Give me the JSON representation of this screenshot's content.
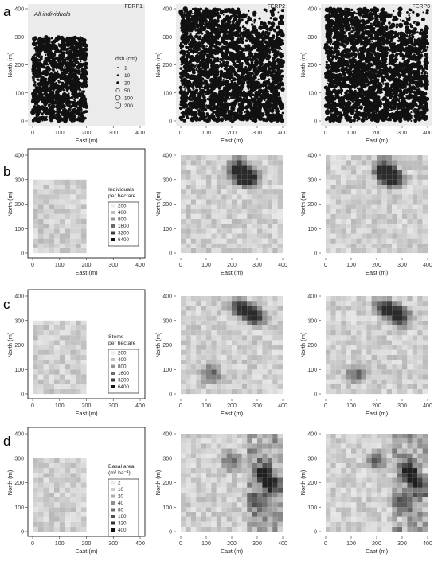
{
  "figure": {
    "row_labels": [
      "a",
      "b",
      "c",
      "d"
    ],
    "panel_titles": {
      "a1": "FERP1",
      "a2": "FERP2",
      "a3": "FERP3"
    },
    "in_panel_note": "All individuals"
  },
  "axes": {
    "xlabel": "East (m)",
    "ylabel": "North (m)",
    "ticks": [
      0,
      100,
      200,
      300,
      400
    ],
    "xlim": [
      0,
      400
    ],
    "ylim": [
      0,
      400
    ]
  },
  "chart_data": [
    {
      "type": "scatter",
      "row": "a",
      "panels": [
        "FERP1",
        "FERP2",
        "FERP3"
      ],
      "xlabel": "East (m)",
      "ylabel": "North (m)",
      "xlim": [
        0,
        400
      ],
      "ylim": [
        0,
        400
      ],
      "plot_extent_m": [
        [
          0,
          200,
          0,
          300
        ],
        [
          0,
          400,
          0,
          400
        ],
        [
          0,
          400,
          0,
          400
        ]
      ],
      "background": "grey",
      "legend": {
        "title": "dsh (cm)",
        "entries": [
          "1",
          "10",
          "20",
          "50",
          "100",
          "200"
        ],
        "placement": "right-middle"
      }
    },
    {
      "type": "heatmap",
      "row": "b",
      "panels": [
        "FERP1",
        "FERP2",
        "FERP3"
      ],
      "cell_size_m": 20,
      "xlabel": "East (m)",
      "ylabel": "North (m)",
      "xlim": [
        0,
        400
      ],
      "ylim": [
        0,
        400
      ],
      "legend": {
        "title_lines": [
          "Individuals",
          "per hectare"
        ],
        "entries": [
          "200",
          "400",
          "800",
          "1600",
          "3200",
          "6400"
        ]
      },
      "hotspots": [
        [
          220,
          330
        ],
        [
          240,
          320
        ],
        [
          260,
          310
        ],
        [
          280,
          300
        ],
        [
          230,
          360
        ]
      ],
      "grid": false
    },
    {
      "type": "heatmap",
      "row": "c",
      "panels": [
        "FERP1",
        "FERP2",
        "FERP3"
      ],
      "cell_size_m": 20,
      "xlabel": "East (m)",
      "ylabel": "North (m)",
      "xlim": [
        0,
        400
      ],
      "ylim": [
        0,
        400
      ],
      "legend": {
        "title_lines": [
          "Stems",
          "per hectare"
        ],
        "entries": [
          "200",
          "400",
          "800",
          "1600",
          "3200",
          "6400"
        ]
      },
      "hotspots": [
        [
          220,
          360
        ],
        [
          250,
          340
        ],
        [
          280,
          330
        ],
        [
          300,
          310
        ],
        [
          120,
          80
        ]
      ],
      "grid": false
    },
    {
      "type": "heatmap",
      "row": "d",
      "panels": [
        "FERP1",
        "FERP2",
        "FERP3"
      ],
      "cell_size_m": 20,
      "xlabel": "East (m)",
      "ylabel": "North (m)",
      "xlim": [
        0,
        400
      ],
      "ylim": [
        0,
        400
      ],
      "legend": {
        "title_lines": [
          "Basal area",
          "(m² ha⁻¹)"
        ],
        "entries": [
          "2",
          "10",
          "20",
          "40",
          "80",
          "160",
          "320",
          "400"
        ]
      },
      "hotspots": [
        [
          320,
          250
        ],
        [
          340,
          220
        ],
        [
          360,
          180
        ],
        [
          300,
          120
        ],
        [
          200,
          290
        ]
      ],
      "grid": false
    }
  ],
  "colors": {
    "scatter_bg": "#ebebeb",
    "points": "#111111",
    "frame": "#000000"
  }
}
